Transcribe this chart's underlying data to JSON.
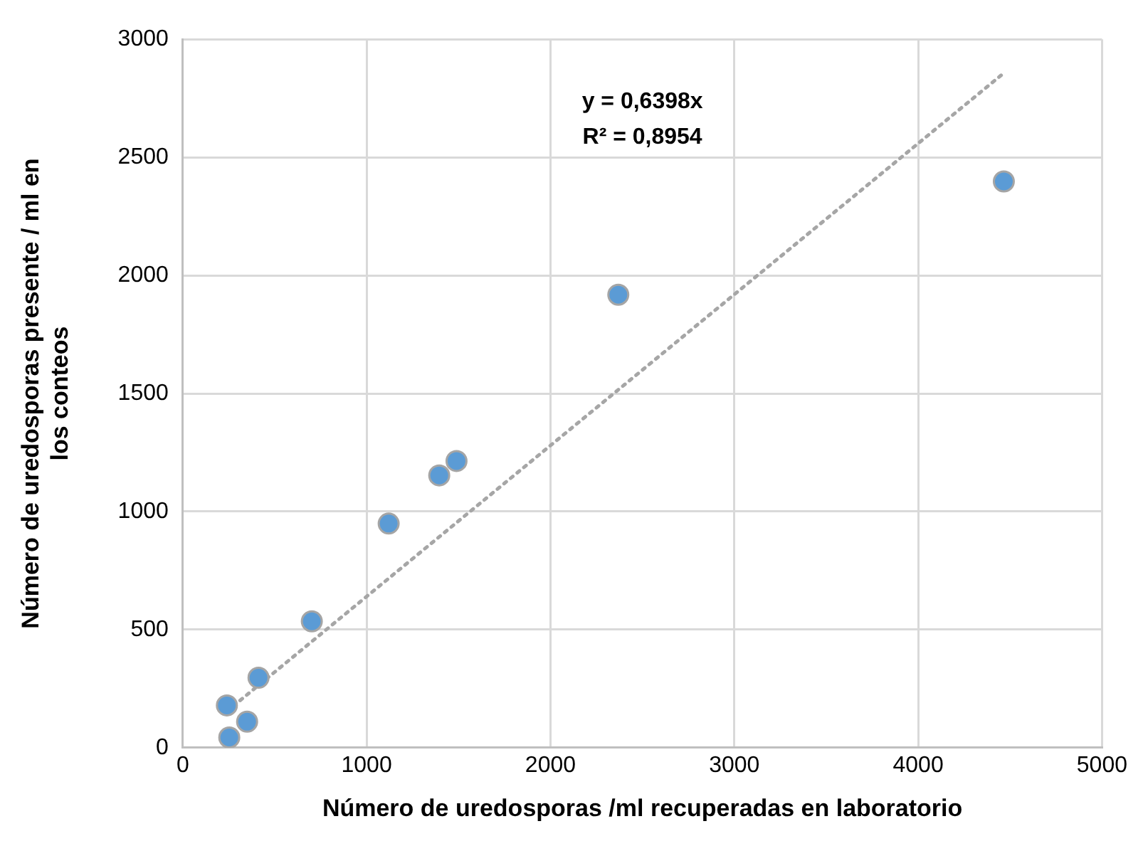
{
  "chart_data": {
    "type": "scatter",
    "xlabel": "Número de uredosporas /ml recuperadas en laboratorio",
    "ylabel": "Número de uredosporas presente / ml en los conteos",
    "xlim": [
      0,
      5000
    ],
    "xticks": [
      0,
      1000,
      2000,
      3000,
      4000,
      5000
    ],
    "ylim": [
      0,
      3000
    ],
    "yticks": [
      0,
      500,
      1000,
      1500,
      2000,
      2500,
      3000
    ],
    "grid": true,
    "marker": "circle",
    "annotations": [
      "y = 0,6398x",
      "R² = 0,8954"
    ],
    "series": [
      {
        "type": "scatter",
        "color": "#5b9bd5",
        "x": [
          253,
          240,
          350,
          412,
          702,
          1120,
          1395,
          1489,
          2369,
          4466
        ],
        "values": [
          43,
          179,
          110,
          296,
          535,
          949,
          1153,
          1214,
          1918,
          2398
        ]
      },
      {
        "type": "line",
        "color": "#a6a6a6",
        "line_style": "dotted",
        "marker": "none",
        "x": [
          240,
          4466
        ],
        "values": [
          154,
          2857
        ]
      }
    ]
  }
}
